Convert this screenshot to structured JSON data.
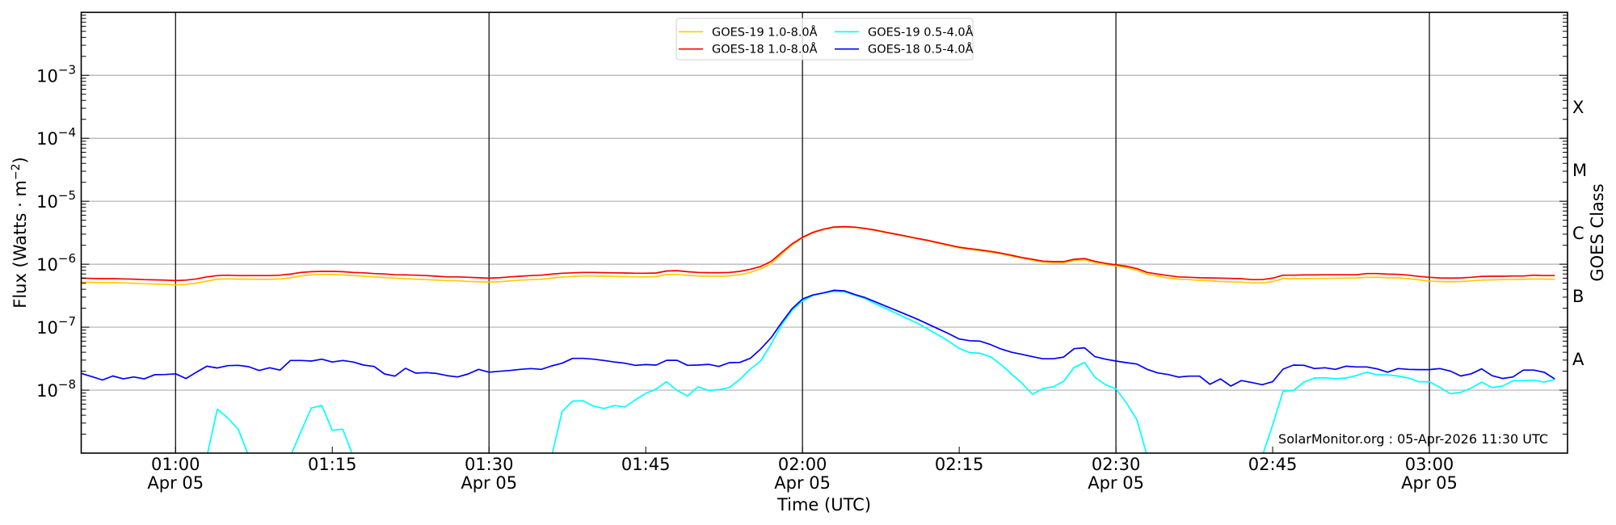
{
  "chart_data": {
    "type": "line",
    "title": "",
    "xlabel": "Time (UTC)",
    "ylabel": {
      "text": "Flux (Watts · m",
      "sup": "−2",
      "end": ")"
    },
    "y_scale": "log",
    "ylim": [
      1e-09,
      0.01
    ],
    "xlim": [
      "00:51",
      "03:13"
    ],
    "grid": {
      "horizontal": "decades",
      "vertical_lines": [
        "01:00",
        "01:30",
        "02:00",
        "02:30",
        "03:00"
      ]
    },
    "yticks": [
      {
        "value": 1e-08,
        "base": "10",
        "exp": "−8"
      },
      {
        "value": 1e-07,
        "base": "10",
        "exp": "−7"
      },
      {
        "value": 1e-06,
        "base": "10",
        "exp": "−6"
      },
      {
        "value": 1e-05,
        "base": "10",
        "exp": "−5"
      },
      {
        "value": 0.0001,
        "base": "10",
        "exp": "−4"
      },
      {
        "value": 0.001,
        "base": "10",
        "exp": "−3"
      }
    ],
    "xticks": [
      {
        "time": "01:00",
        "label": "01:00",
        "date": "Apr 05"
      },
      {
        "time": "01:15",
        "label": "01:15",
        "date": ""
      },
      {
        "time": "01:30",
        "label": "01:30",
        "date": "Apr 05"
      },
      {
        "time": "01:45",
        "label": "01:45",
        "date": ""
      },
      {
        "time": "02:00",
        "label": "02:00",
        "date": "Apr 05"
      },
      {
        "time": "02:15",
        "label": "02:15",
        "date": ""
      },
      {
        "time": "02:30",
        "label": "02:30",
        "date": "Apr 05"
      },
      {
        "time": "02:45",
        "label": "02:45",
        "date": ""
      },
      {
        "time": "03:00",
        "label": "03:00",
        "date": "Apr 05"
      }
    ],
    "right_axis": {
      "label": "GOES Class",
      "classes": [
        {
          "letter": "A",
          "range": [
            1e-08,
            1e-07
          ]
        },
        {
          "letter": "B",
          "range": [
            1e-07,
            1e-06
          ]
        },
        {
          "letter": "C",
          "range": [
            1e-06,
            1e-05
          ]
        },
        {
          "letter": "M",
          "range": [
            1e-05,
            0.0001
          ]
        },
        {
          "letter": "X",
          "range": [
            0.0001,
            0.001
          ]
        }
      ]
    },
    "legend": {
      "placement": "top-center",
      "columns": 2
    },
    "annotation": "SolarMonitor.org : 05-Apr-2026 11:30 UTC",
    "x": [
      "00:51",
      "00:52",
      "00:53",
      "00:54",
      "00:55",
      "00:56",
      "00:57",
      "00:58",
      "00:59",
      "01:00",
      "01:01",
      "01:02",
      "01:03",
      "01:04",
      "01:05",
      "01:06",
      "01:07",
      "01:08",
      "01:09",
      "01:10",
      "01:11",
      "01:12",
      "01:13",
      "01:14",
      "01:15",
      "01:16",
      "01:17",
      "01:18",
      "01:19",
      "01:20",
      "01:21",
      "01:22",
      "01:23",
      "01:24",
      "01:25",
      "01:26",
      "01:27",
      "01:28",
      "01:29",
      "01:30",
      "01:31",
      "01:32",
      "01:33",
      "01:34",
      "01:35",
      "01:36",
      "01:37",
      "01:38",
      "01:39",
      "01:40",
      "01:41",
      "01:42",
      "01:43",
      "01:44",
      "01:45",
      "01:46",
      "01:47",
      "01:48",
      "01:49",
      "01:50",
      "01:51",
      "01:52",
      "01:53",
      "01:54",
      "01:55",
      "01:56",
      "01:57",
      "01:58",
      "01:59",
      "02:00",
      "02:01",
      "02:02",
      "02:03",
      "02:04",
      "02:05",
      "02:06",
      "02:07",
      "02:08",
      "02:09",
      "02:10",
      "02:11",
      "02:12",
      "02:13",
      "02:14",
      "02:15",
      "02:16",
      "02:17",
      "02:18",
      "02:19",
      "02:20",
      "02:21",
      "02:22",
      "02:23",
      "02:24",
      "02:25",
      "02:26",
      "02:27",
      "02:28",
      "02:29",
      "02:30",
      "02:31",
      "02:32",
      "02:33",
      "02:34",
      "02:35",
      "02:36",
      "02:37",
      "02:38",
      "02:39",
      "02:40",
      "02:41",
      "02:42",
      "02:43",
      "02:44",
      "02:45",
      "02:46",
      "02:47",
      "02:48",
      "02:49",
      "02:50",
      "02:51",
      "02:52",
      "02:53",
      "02:54",
      "02:55",
      "02:56",
      "02:57",
      "02:58",
      "02:59",
      "03:00",
      "03:01",
      "03:02",
      "03:03",
      "03:04",
      "03:05",
      "03:06",
      "03:07",
      "03:08",
      "03:09",
      "03:10",
      "03:11",
      "03:12"
    ],
    "series": [
      {
        "name": "GOES-19 1.0-8.0Å",
        "color": "#ffcc00",
        "values": [
          5.2e-07,
          5.15e-07,
          5.1e-07,
          5.1e-07,
          5.05e-07,
          5e-07,
          4.9e-07,
          4.85e-07,
          4.8e-07,
          4.7e-07,
          4.8e-07,
          5e-07,
          5.4e-07,
          5.8e-07,
          5.85e-07,
          5.8e-07,
          5.8e-07,
          5.75e-07,
          5.75e-07,
          5.85e-07,
          6.1e-07,
          6.5e-07,
          6.8e-07,
          6.9e-07,
          6.85e-07,
          6.75e-07,
          6.6e-07,
          6.45e-07,
          6.3e-07,
          6.15e-07,
          6e-07,
          5.9e-07,
          5.8e-07,
          5.7e-07,
          5.6e-07,
          5.5e-07,
          5.45e-07,
          5.35e-07,
          5.25e-07,
          5.2e-07,
          5.25e-07,
          5.45e-07,
          5.6e-07,
          5.7e-07,
          5.8e-07,
          6e-07,
          6.25e-07,
          6.4e-07,
          6.5e-07,
          6.5e-07,
          6.45e-07,
          6.4e-07,
          6.35e-07,
          6.3e-07,
          6.3e-07,
          6.35e-07,
          6.85e-07,
          6.9e-07,
          6.65e-07,
          6.5e-07,
          6.45e-07,
          6.45e-07,
          6.5e-07,
          6.8e-07,
          7.4e-07,
          8.4e-07,
          1.02e-06,
          1.45e-06,
          2.02e-06,
          2.63e-06,
          3.15e-06,
          3.55e-06,
          3.85e-06,
          3.9e-06,
          3.83e-06,
          3.65e-06,
          3.43e-06,
          3.17e-06,
          2.95e-06,
          2.73e-06,
          2.53e-06,
          2.35e-06,
          2.16e-06,
          1.98e-06,
          1.82e-06,
          1.72e-06,
          1.64e-06,
          1.55e-06,
          1.46e-06,
          1.35e-06,
          1.25e-06,
          1.16e-06,
          1.08e-06,
          1.05e-06,
          1.05e-06,
          1.15e-06,
          1.18e-06,
          1.06e-06,
          9.8e-07,
          9.4e-07,
          8.9e-07,
          8e-07,
          6.9e-07,
          6.4e-07,
          6.05e-07,
          5.8e-07,
          5.7e-07,
          5.55e-07,
          5.45e-07,
          5.3e-07,
          5.25e-07,
          5.2e-07,
          5.05e-07,
          5.05e-07,
          5.3e-07,
          5.9e-07,
          5.9e-07,
          5.9e-07,
          5.95e-07,
          5.95e-07,
          6e-07,
          6e-07,
          6.05e-07,
          6.2e-07,
          6.2e-07,
          6.1e-07,
          6.05e-07,
          5.9e-07,
          5.65e-07,
          5.4e-07,
          5.3e-07,
          5.25e-07,
          5.3e-07,
          5.45e-07,
          5.6e-07,
          5.65e-07,
          5.7e-07,
          5.7e-07,
          5.75e-07,
          5.85e-07,
          5.8e-07,
          5.8e-07
        ]
      },
      {
        "name": "GOES-18 1.0-8.0Å",
        "color": "#ff0000",
        "values": [
          6e-07,
          5.95e-07,
          5.9e-07,
          5.9e-07,
          5.85e-07,
          5.8e-07,
          5.7e-07,
          5.65e-07,
          5.6e-07,
          5.5e-07,
          5.6e-07,
          5.85e-07,
          6.3e-07,
          6.6e-07,
          6.7e-07,
          6.6e-07,
          6.6e-07,
          6.6e-07,
          6.6e-07,
          6.7e-07,
          6.95e-07,
          7.4e-07,
          7.6e-07,
          7.7e-07,
          7.7e-07,
          7.6e-07,
          7.4e-07,
          7.3e-07,
          7.1e-07,
          7e-07,
          6.8e-07,
          6.75e-07,
          6.7e-07,
          6.6e-07,
          6.45e-07,
          6.3e-07,
          6.3e-07,
          6.2e-07,
          6.1e-07,
          6e-07,
          6.1e-07,
          6.3e-07,
          6.45e-07,
          6.6e-07,
          6.7e-07,
          6.95e-07,
          7.2e-07,
          7.3e-07,
          7.4e-07,
          7.4e-07,
          7.35e-07,
          7.3e-07,
          7.25e-07,
          7.2e-07,
          7.2e-07,
          7.25e-07,
          7.8e-07,
          7.9e-07,
          7.6e-07,
          7.4e-07,
          7.35e-07,
          7.35e-07,
          7.4e-07,
          7.7e-07,
          8.3e-07,
          9.2e-07,
          1.11e-06,
          1.53e-06,
          2.1e-06,
          2.68e-06,
          3.2e-06,
          3.6e-06,
          3.9e-06,
          3.95e-06,
          3.88e-06,
          3.7e-06,
          3.48e-06,
          3.21e-06,
          2.99e-06,
          2.77e-06,
          2.57e-06,
          2.39e-06,
          2.2e-06,
          2.02e-06,
          1.86e-06,
          1.77e-06,
          1.69e-06,
          1.6e-06,
          1.5e-06,
          1.39e-06,
          1.28e-06,
          1.2e-06,
          1.12e-06,
          1.1e-06,
          1.1e-06,
          1.2e-06,
          1.23e-06,
          1.11e-06,
          1.03e-06,
          9.8e-07,
          9.3e-07,
          8.5e-07,
          7.4e-07,
          6.95e-07,
          6.6e-07,
          6.3e-07,
          6.2e-07,
          6.1e-07,
          6.05e-07,
          6e-07,
          5.95e-07,
          5.9e-07,
          5.7e-07,
          5.7e-07,
          6e-07,
          6.7e-07,
          6.7e-07,
          6.75e-07,
          6.75e-07,
          6.8e-07,
          6.8e-07,
          6.8e-07,
          6.8e-07,
          7.1e-07,
          7.1e-07,
          6.95e-07,
          6.9e-07,
          6.7e-07,
          6.4e-07,
          6.2e-07,
          6.05e-07,
          6e-07,
          6.05e-07,
          6.2e-07,
          6.4e-07,
          6.45e-07,
          6.45e-07,
          6.5e-07,
          6.5e-07,
          6.7e-07,
          6.6e-07,
          6.6e-07
        ]
      },
      {
        "name": "GOES-19 0.5-4.0Å",
        "color": "#00ffff",
        "values": [
          0,
          0,
          0,
          0,
          0,
          0,
          0,
          0,
          0,
          0,
          0,
          0,
          0,
          5e-09,
          3.6e-09,
          2.4e-09,
          0,
          0,
          0,
          0,
          0,
          2.2e-09,
          5.2e-09,
          5.7e-09,
          2.3e-09,
          2.4e-09,
          0,
          0,
          0,
          0,
          0,
          0,
          0,
          0,
          0,
          0,
          0,
          0,
          0,
          0,
          0,
          0,
          0,
          0,
          0,
          0,
          4.6e-09,
          6.7e-09,
          6.8e-09,
          5.6e-09,
          5.1e-09,
          5.7e-09,
          5.4e-09,
          7e-09,
          8.9e-09,
          1.04e-08,
          1.36e-08,
          9.9e-09,
          8.1e-09,
          1.13e-08,
          9.9e-09,
          1.02e-08,
          1.1e-08,
          1.48e-08,
          2.16e-08,
          2.9e-08,
          5.4e-08,
          1.08e-07,
          1.86e-07,
          2.6e-07,
          3.2e-07,
          3.5e-07,
          3.7e-07,
          3.66e-07,
          3.24e-07,
          2.86e-07,
          2.34e-07,
          1.97e-07,
          1.65e-07,
          1.38e-07,
          1.16e-07,
          9.3e-08,
          7.5e-08,
          6e-08,
          4.6e-08,
          3.95e-08,
          3.85e-08,
          3.4e-08,
          2.55e-08,
          1.81e-08,
          1.3e-08,
          8.6e-09,
          1.06e-08,
          1.13e-08,
          1.38e-08,
          2.3e-08,
          2.75e-08,
          1.6e-08,
          1.22e-08,
          1.05e-08,
          6.3e-09,
          3.4e-09,
          0,
          0,
          0,
          0,
          0,
          0,
          0,
          0,
          0,
          0,
          0,
          0,
          2.8e-09,
          9.6e-09,
          9.9e-09,
          1.34e-08,
          1.56e-08,
          1.57e-08,
          1.52e-08,
          1.56e-08,
          1.7e-08,
          1.93e-08,
          1.75e-08,
          1.75e-08,
          1.68e-08,
          1.56e-08,
          1.36e-08,
          1.36e-08,
          1.11e-08,
          8.8e-09,
          9.2e-09,
          1.08e-08,
          1.34e-08,
          1.1e-08,
          1.16e-08,
          1.41e-08,
          1.42e-08,
          1.44e-08,
          1.34e-08,
          1.48e-08
        ]
      },
      {
        "name": "GOES-18 0.5-4.0Å",
        "color": "#0000ff",
        "values": [
          1.84e-08,
          1.64e-08,
          1.45e-08,
          1.68e-08,
          1.51e-08,
          1.62e-08,
          1.51e-08,
          1.76e-08,
          1.77e-08,
          1.82e-08,
          1.53e-08,
          1.93e-08,
          2.4e-08,
          2.25e-08,
          2.45e-08,
          2.48e-08,
          2.36e-08,
          2.05e-08,
          2.27e-08,
          2.08e-08,
          2.96e-08,
          2.96e-08,
          2.9e-08,
          3.1e-08,
          2.8e-08,
          2.96e-08,
          2.8e-08,
          2.5e-08,
          2.38e-08,
          1.81e-08,
          1.67e-08,
          2.22e-08,
          1.86e-08,
          1.9e-08,
          1.84e-08,
          1.7e-08,
          1.62e-08,
          1.81e-08,
          2.14e-08,
          1.93e-08,
          1.99e-08,
          2.05e-08,
          2.14e-08,
          2.2e-08,
          2.14e-08,
          2.43e-08,
          2.68e-08,
          3.2e-08,
          3.2e-08,
          3.1e-08,
          2.96e-08,
          2.8e-08,
          2.68e-08,
          2.48e-08,
          2.55e-08,
          2.5e-08,
          2.98e-08,
          2.98e-08,
          2.48e-08,
          2.5e-08,
          2.57e-08,
          2.38e-08,
          2.73e-08,
          2.76e-08,
          3.2e-08,
          4.5e-08,
          6.8e-08,
          1.18e-07,
          1.96e-07,
          2.8e-07,
          3.25e-07,
          3.5e-07,
          3.85e-07,
          3.78e-07,
          3.31e-07,
          2.95e-07,
          2.52e-07,
          2.15e-07,
          1.84e-07,
          1.57e-07,
          1.34e-07,
          1.12e-07,
          9.4e-08,
          7.9e-08,
          6.5e-08,
          6.1e-08,
          6e-08,
          5.3e-08,
          4.5e-08,
          4e-08,
          3.7e-08,
          3.4e-08,
          3.15e-08,
          3.15e-08,
          3.35e-08,
          4.55e-08,
          4.7e-08,
          3.4e-08,
          3.1e-08,
          2.9e-08,
          2.73e-08,
          2.6e-08,
          2.14e-08,
          1.88e-08,
          1.77e-08,
          1.61e-08,
          1.67e-08,
          1.67e-08,
          1.24e-08,
          1.51e-08,
          1.16e-08,
          1.42e-08,
          1.32e-08,
          1.22e-08,
          1.36e-08,
          2.16e-08,
          2.5e-08,
          2.48e-08,
          2.2e-08,
          2.27e-08,
          2.14e-08,
          2.4e-08,
          2.34e-08,
          2.34e-08,
          2.18e-08,
          1.93e-08,
          2.2e-08,
          2.14e-08,
          2.12e-08,
          2.12e-08,
          2.2e-08,
          2.01e-08,
          1.68e-08,
          1.82e-08,
          2.18e-08,
          1.7e-08,
          1.53e-08,
          1.62e-08,
          2.08e-08,
          2.08e-08,
          1.92e-08,
          1.51e-08
        ]
      }
    ]
  }
}
